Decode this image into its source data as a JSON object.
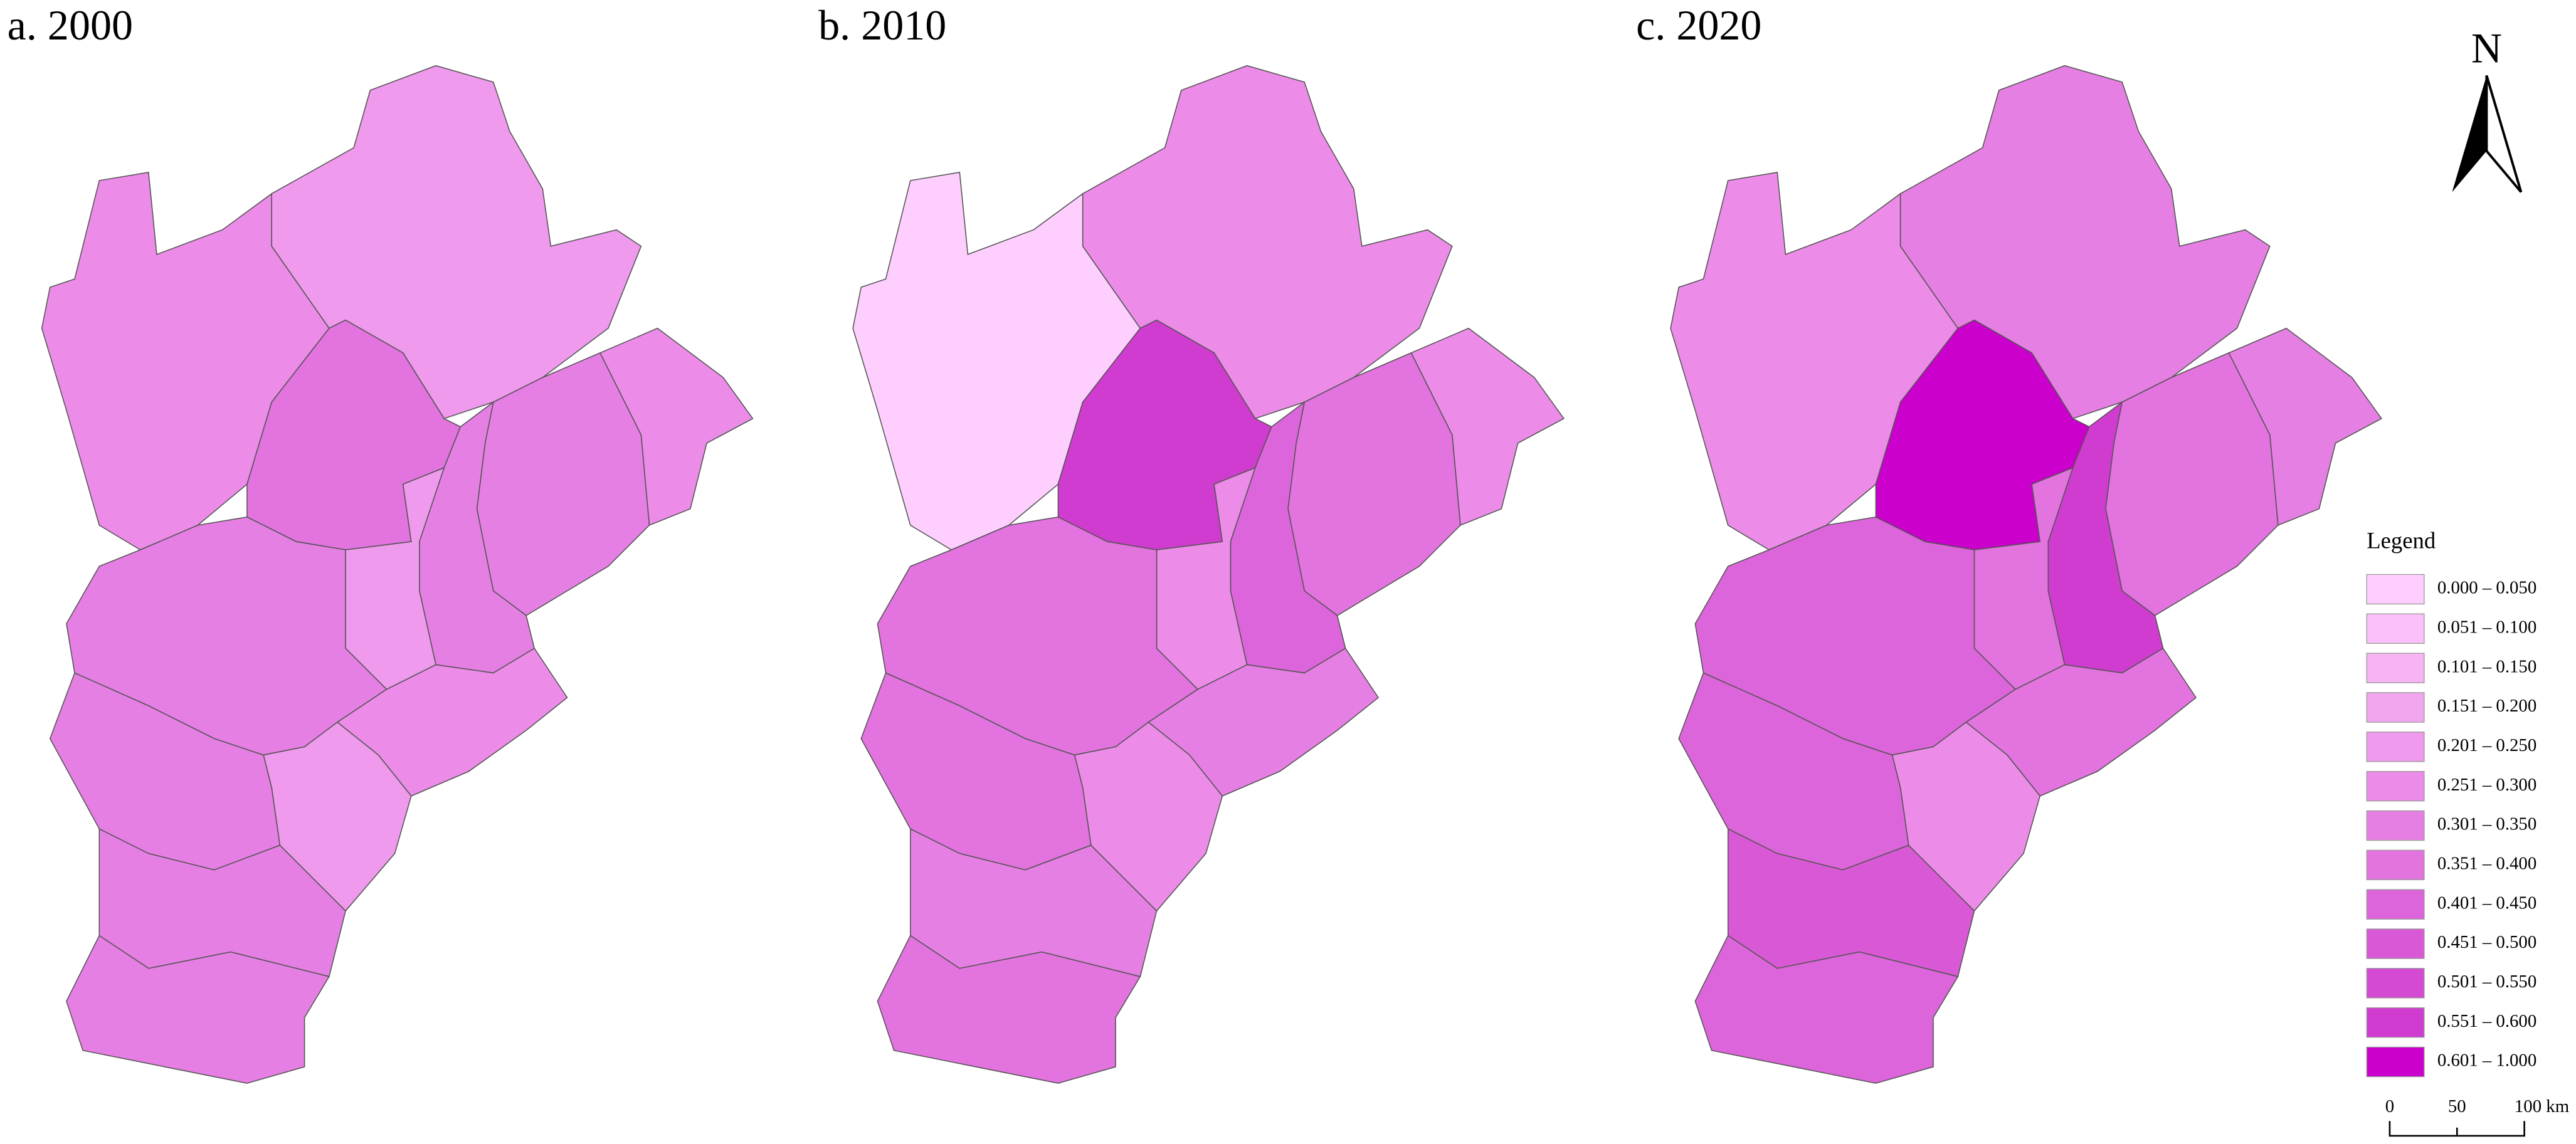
{
  "panels": [
    {
      "title": "a. 2000",
      "region_colors": [
        "#ec8ce8",
        "#ef9aec",
        "#e273df",
        "#ec8ce8",
        "#e67fe3",
        "#e67fe3",
        "#ef9aec",
        "#e67fe3",
        "#ec8ce8",
        "#ef9aec",
        "#e67fe3",
        "#e67fe3",
        "#e67fe3"
      ]
    },
    {
      "title": "b. 2010",
      "region_colors": [
        "#fecefe",
        "#ec8ce8",
        "#d03ccf",
        "#ec8ce8",
        "#e273df",
        "#dd65db",
        "#ec8ce8",
        "#e273df",
        "#e67fe3",
        "#ec8ce8",
        "#e273df",
        "#e67fe3",
        "#e273df"
      ]
    },
    {
      "title": "c. 2020",
      "region_colors": [
        "#ec8ce8",
        "#e67fe3",
        "#cc00cc",
        "#e67fe3",
        "#e273df",
        "#d03ccf",
        "#e273df",
        "#dd65db",
        "#e273df",
        "#ec8ce8",
        "#dd65db",
        "#d958d6",
        "#dd65db"
      ]
    }
  ],
  "north_arrow": "N",
  "legend": {
    "title": "Legend",
    "items": [
      {
        "label": "0.000 – 0.050",
        "color": "#fecefe"
      },
      {
        "label": "0.051 – 0.100",
        "color": "#fbc0f9"
      },
      {
        "label": "0.101 – 0.150",
        "color": "#f7b3f4"
      },
      {
        "label": "0.151 – 0.200",
        "color": "#f2a6f0"
      },
      {
        "label": "0.201 – 0.250",
        "color": "#ef9aec"
      },
      {
        "label": "0.251 – 0.300",
        "color": "#ec8ce8"
      },
      {
        "label": "0.301 – 0.350",
        "color": "#e67fe3"
      },
      {
        "label": "0.351 – 0.400",
        "color": "#e273df"
      },
      {
        "label": "0.401 – 0.450",
        "color": "#dd65db"
      },
      {
        "label": "0.451 – 0.500",
        "color": "#d958d6"
      },
      {
        "label": "0.501 – 0.550",
        "color": "#d44ad2"
      },
      {
        "label": "0.551 – 0.600",
        "color": "#d03ccf"
      },
      {
        "label": "0.601 – 1.000",
        "color": "#cc00cc"
      }
    ]
  },
  "scale_bar": {
    "labels": [
      "0",
      "50",
      "100 km"
    ]
  }
}
